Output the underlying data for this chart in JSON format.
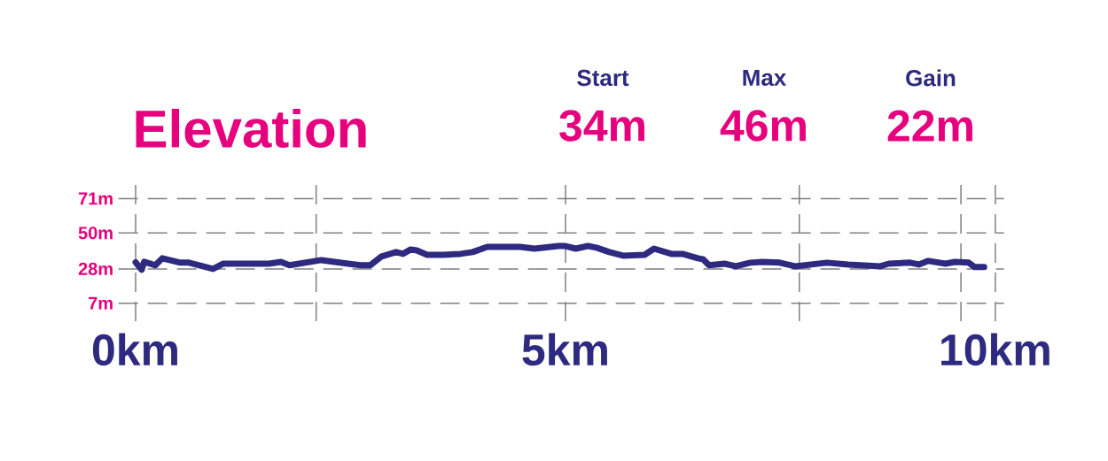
{
  "chart_data": {
    "type": "line",
    "title": "Elevation",
    "annotations": [
      "Start",
      "34m",
      "Max",
      "46m",
      "Gain",
      "22m"
    ],
    "x": [
      0.0,
      0.07,
      0.1,
      0.23,
      0.31,
      0.52,
      0.62,
      0.9,
      1.02,
      1.55,
      1.69,
      1.79,
      2.16,
      2.47,
      2.62,
      2.73,
      2.86,
      3.03,
      3.11,
      3.2,
      3.27,
      3.39,
      3.58,
      3.78,
      3.92,
      4.09,
      4.47,
      4.64,
      4.92,
      5.0,
      5.12,
      5.26,
      5.36,
      5.51,
      5.67,
      5.92,
      6.03,
      6.23,
      6.36,
      6.54,
      6.6,
      6.67,
      6.85,
      6.98,
      7.15,
      7.29,
      7.49,
      7.67,
      8.04,
      8.29,
      8.66,
      8.76,
      9.01,
      9.11,
      9.22,
      9.42,
      9.53,
      9.69,
      9.76,
      9.87
    ],
    "series": [
      {
        "color": "#2d2a80",
        "values": [
          32,
          27.5,
          32.3,
          30.2,
          34.5,
          31.8,
          31.8,
          28,
          31.2,
          31.2,
          32.3,
          30.2,
          33.4,
          31.2,
          30.2,
          30.2,
          35.6,
          38.3,
          37.2,
          39.9,
          39.3,
          36.6,
          36.6,
          37.2,
          38.3,
          41.5,
          41.5,
          40.4,
          42,
          42,
          40.4,
          42,
          41,
          38.3,
          36.1,
          36.6,
          40.4,
          37.2,
          37.2,
          34.5,
          33.9,
          30.2,
          31.2,
          29.6,
          31.8,
          32.3,
          31.8,
          29.6,
          31.8,
          30.7,
          29.6,
          31.2,
          31.8,
          30.7,
          32.9,
          31.2,
          32.3,
          31.8,
          29.1,
          29.1
        ]
      }
    ],
    "xlim": [
      -0.2,
      10.1
    ],
    "ylim": [
      -4,
      81
    ],
    "xticks": [
      {
        "value": 0,
        "label": "0km"
      },
      {
        "value": 2.1,
        "label": null
      },
      {
        "value": 5,
        "label": "5km"
      },
      {
        "value": 7.72,
        "label": null
      },
      {
        "value": 9.6,
        "label": null
      },
      {
        "value": 10,
        "label": "10km"
      }
    ],
    "yticks": [
      {
        "value": 7,
        "label": "7m"
      },
      {
        "value": 28,
        "label": "28m"
      },
      {
        "value": 50,
        "label": "50m"
      },
      {
        "value": 71,
        "label": "71m"
      }
    ],
    "grid": true,
    "marker": "none",
    "line_style": "solid"
  }
}
